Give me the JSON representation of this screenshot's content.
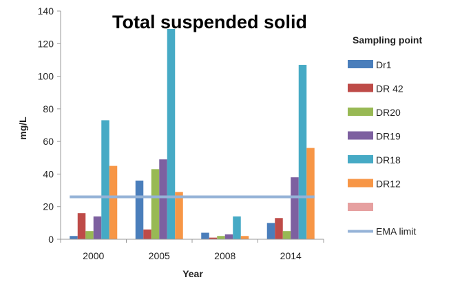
{
  "chart_data": {
    "type": "bar",
    "title": "Total suspended solid",
    "xlabel": "Year",
    "ylabel": "mg/L",
    "ylim": [
      0,
      140
    ],
    "yticks": [
      0,
      20,
      40,
      60,
      80,
      100,
      120,
      140
    ],
    "categories": [
      "2000",
      "2005",
      "2008",
      "2014"
    ],
    "series": [
      {
        "name": "Dr1",
        "color": "#4a7ebb",
        "values": [
          2,
          36,
          4,
          10
        ]
      },
      {
        "name": "DR 42",
        "color": "#be4b48",
        "values": [
          16,
          6,
          1,
          13
        ]
      },
      {
        "name": "DR20",
        "color": "#98b954",
        "values": [
          5,
          43,
          2,
          5
        ]
      },
      {
        "name": "DR19",
        "color": "#7d60a0",
        "values": [
          14,
          49,
          3,
          38
        ]
      },
      {
        "name": "DR18",
        "color": "#46aac5",
        "values": [
          73,
          129,
          14,
          107
        ]
      },
      {
        "name": "DR12",
        "color": "#f79646",
        "values": [
          45,
          29,
          2,
          56
        ]
      }
    ],
    "legend": {
      "title": "Sampling point",
      "placement": "right",
      "blank_entry_color": "#e6a0a0"
    },
    "reference_line": {
      "name": "EMA limit",
      "value": 26,
      "color": "#95b3d7"
    },
    "grid": false
  }
}
